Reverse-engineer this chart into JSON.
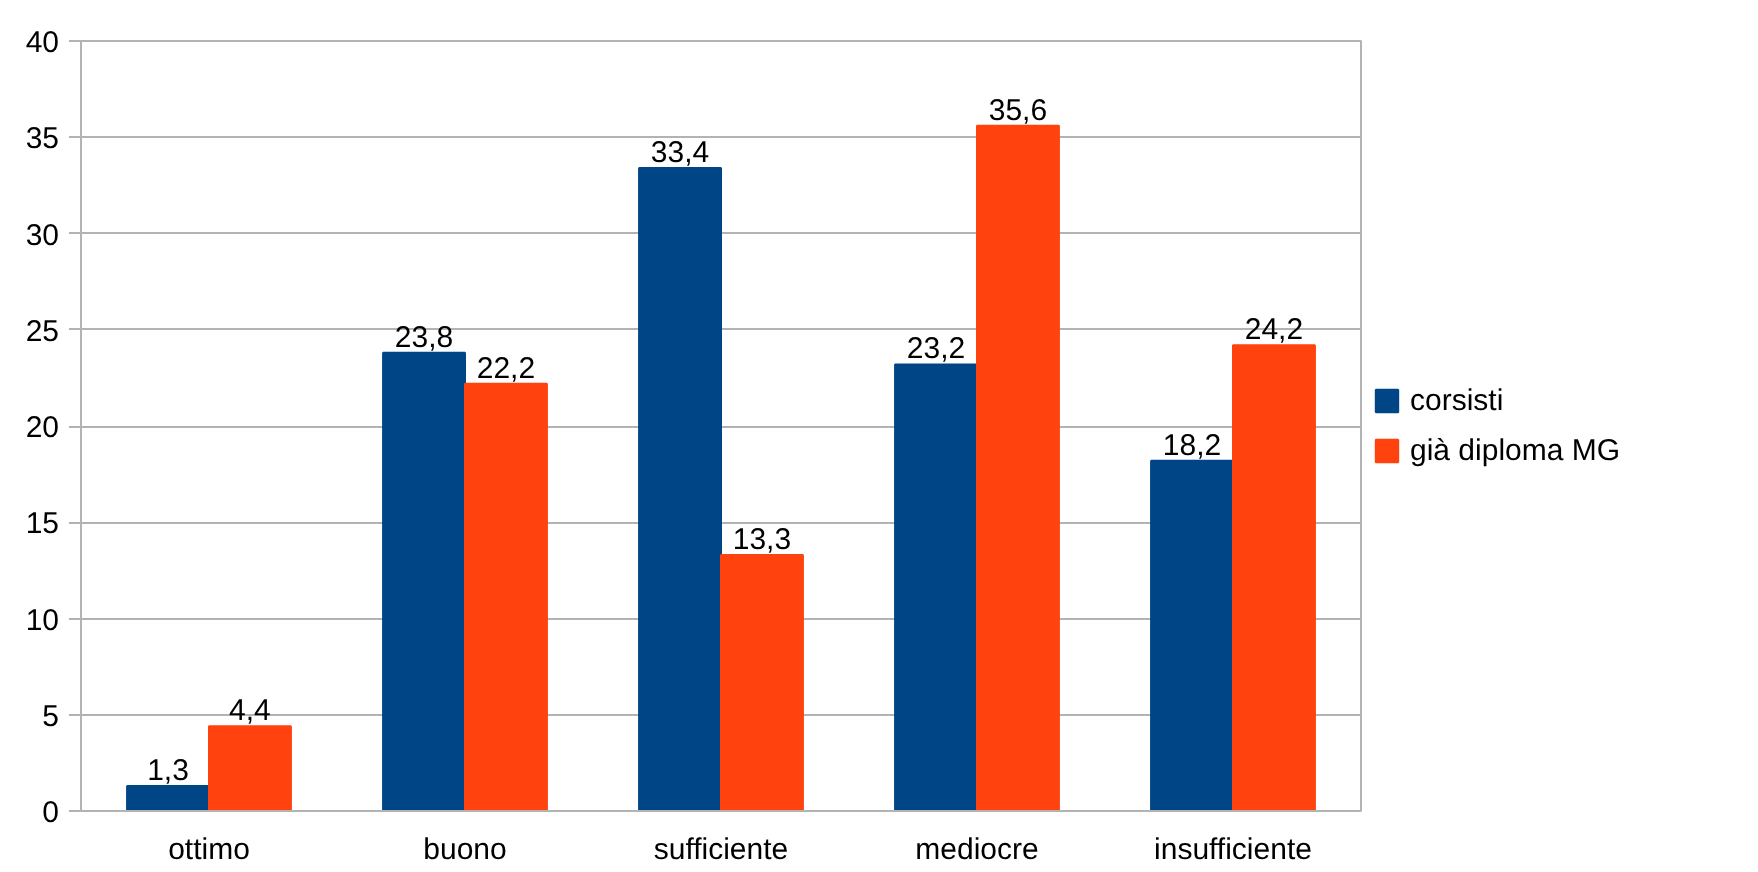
{
  "chart_data": {
    "type": "bar",
    "categories": [
      "ottimo",
      "buono",
      "sufficiente",
      "mediocre",
      "insufficiente"
    ],
    "series": [
      {
        "name": "corsisti",
        "color": "#004586",
        "values": [
          1.3,
          23.8,
          33.4,
          23.2,
          18.2
        ],
        "value_labels": [
          "1,3",
          "23,8",
          "33,4",
          "23,2",
          "18,2"
        ]
      },
      {
        "name": "già diploma MG",
        "color": "#ff420e",
        "values": [
          4.4,
          22.2,
          13.3,
          35.6,
          24.2
        ],
        "value_labels": [
          "4,4",
          "22,2",
          "13,3",
          "35,6",
          "24,2"
        ]
      }
    ],
    "ylim": [
      0,
      40
    ],
    "yticks": [
      0,
      5,
      10,
      15,
      20,
      25,
      30,
      35,
      40
    ],
    "grid": "y",
    "legend": "right"
  }
}
